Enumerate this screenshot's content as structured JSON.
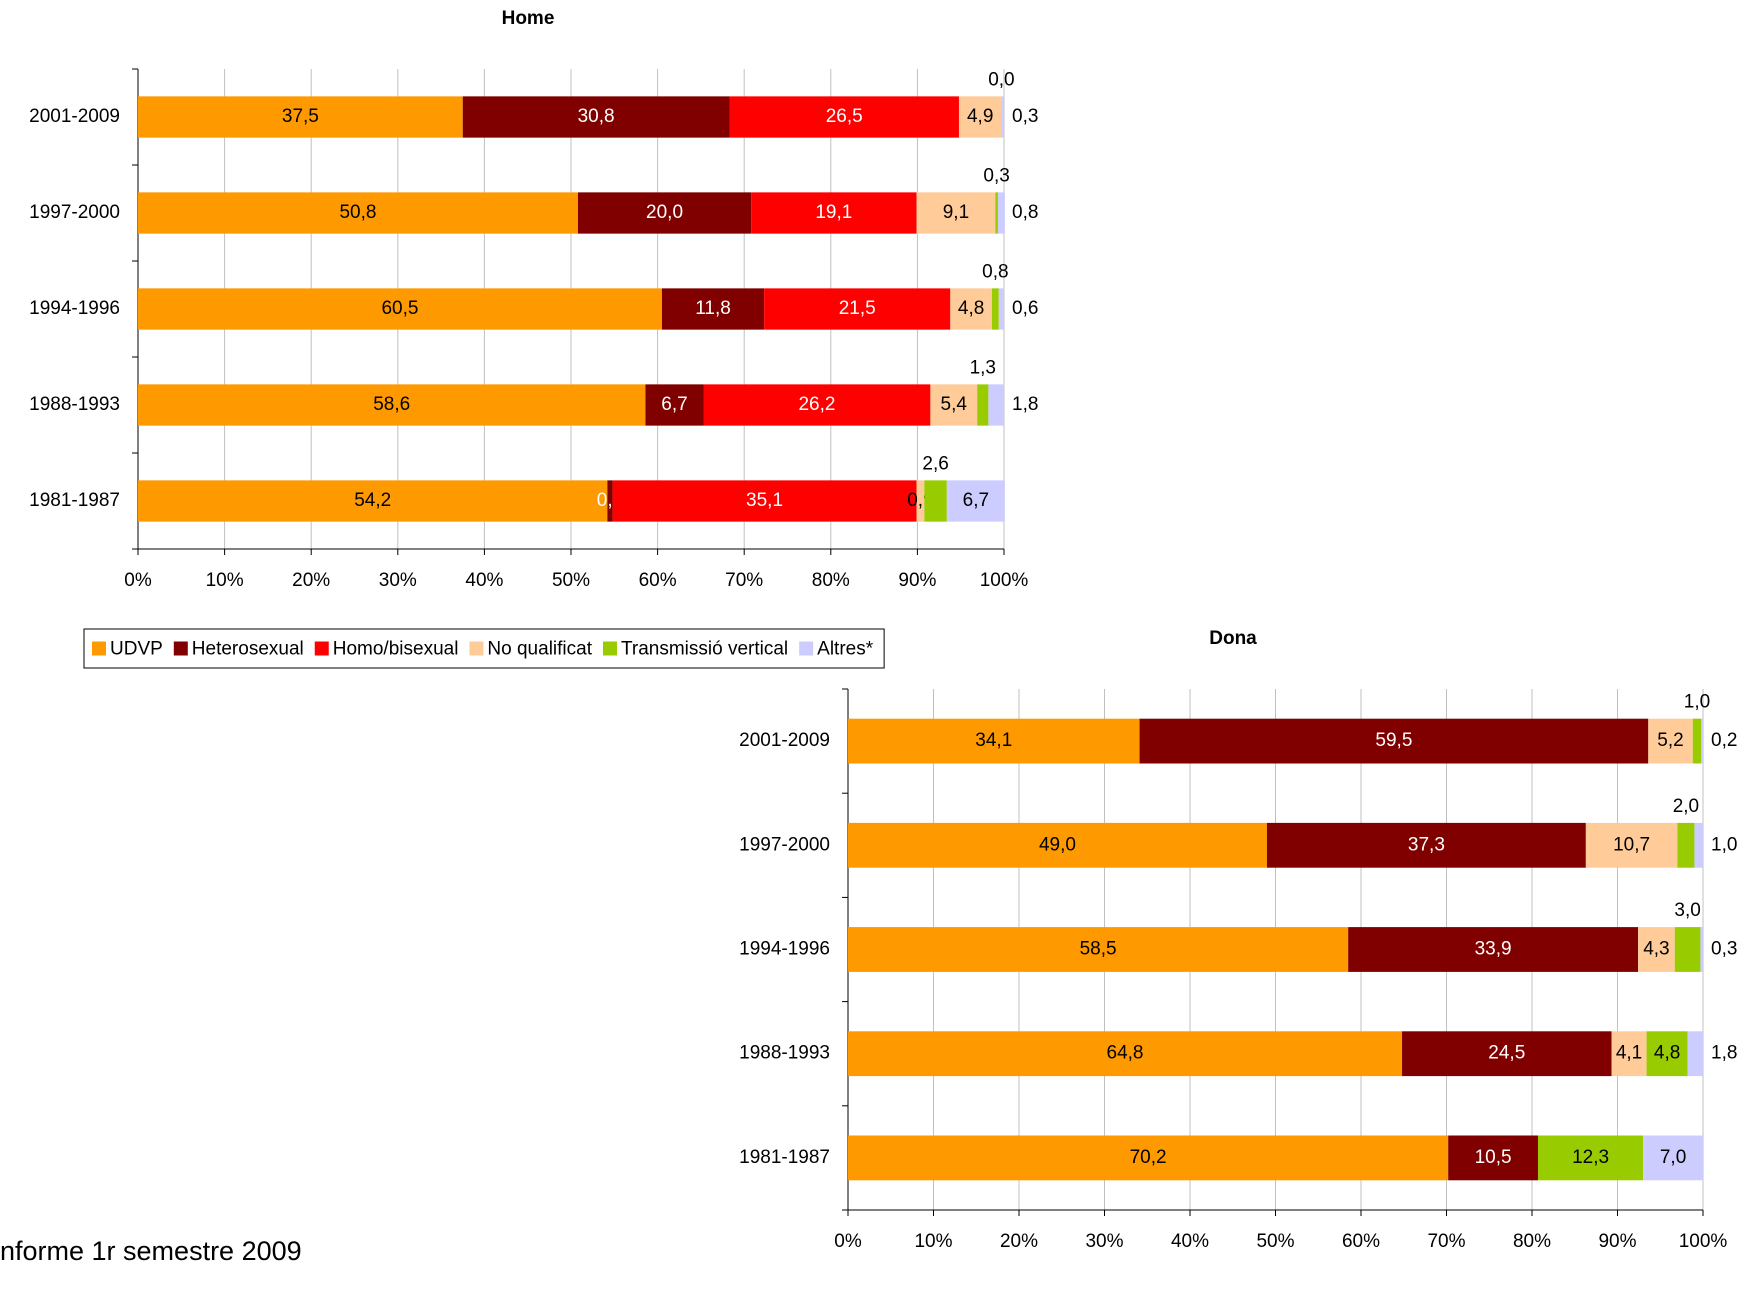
{
  "chart_data": [
    {
      "type": "bar",
      "orientation": "horizontal",
      "stacked": true,
      "title": "Home",
      "categories": [
        "2001-2009",
        "1997-2000",
        "1994-1996",
        "1988-1993",
        "1981-1987"
      ],
      "series": [
        {
          "name": "UDVP",
          "color": "#ff9900",
          "values": [
            37.5,
            50.8,
            60.5,
            58.6,
            54.2
          ],
          "value_labels": [
            "37,5",
            "50,8",
            "60,5",
            "58,6",
            "54,2"
          ]
        },
        {
          "name": "Heterosexual",
          "color": "#800000",
          "values": [
            30.8,
            20.0,
            11.8,
            6.7,
            0.6
          ],
          "value_labels": [
            "30,8",
            "20,0",
            "11,8",
            "6,7",
            "0,6"
          ]
        },
        {
          "name": "Homo/bisexual",
          "color": "#ff0000",
          "values": [
            26.5,
            19.1,
            21.5,
            26.2,
            35.1
          ],
          "value_labels": [
            "26,5",
            "19,1",
            "21,5",
            "26,2",
            "35,1"
          ]
        },
        {
          "name": "No qualificat",
          "color": "#ffcc99",
          "values": [
            4.9,
            9.1,
            4.8,
            5.4,
            0.9
          ],
          "value_labels": [
            "4,9",
            "9,1",
            "4,8",
            "5,4",
            "0,9"
          ]
        },
        {
          "name": "Transmissió vertical",
          "color": "#99cc00",
          "values": [
            0.0,
            0.3,
            0.8,
            1.3,
            2.6
          ],
          "value_labels": [
            "0,0",
            "0,3",
            "0,8",
            "1,3",
            "2,6"
          ]
        },
        {
          "name": "Altres*",
          "color": "#ccccff",
          "values": [
            0.3,
            0.8,
            0.6,
            1.8,
            6.7
          ],
          "value_labels": [
            "0,3",
            "0,8",
            "0,6",
            "1,8",
            "6,7"
          ]
        }
      ],
      "xlim": [
        0,
        100
      ],
      "xticks": [
        {
          "value": 0,
          "label": "0%"
        },
        {
          "value": 10,
          "label": "10%"
        },
        {
          "value": 20,
          "label": "20%"
        },
        {
          "value": 30,
          "label": "30%"
        },
        {
          "value": 40,
          "label": "40%"
        },
        {
          "value": 50,
          "label": "50%"
        },
        {
          "value": 60,
          "label": "60%"
        },
        {
          "value": 70,
          "label": "70%"
        },
        {
          "value": 80,
          "label": "80%"
        },
        {
          "value": 90,
          "label": "90%"
        },
        {
          "value": 100,
          "label": "100%"
        }
      ],
      "grid": true,
      "legend": "bottom"
    },
    {
      "type": "bar",
      "orientation": "horizontal",
      "stacked": true,
      "title": "Dona",
      "categories": [
        "2001-2009",
        "1997-2000",
        "1994-1996",
        "1988-1993",
        "1981-1987"
      ],
      "series": [
        {
          "color": "#ff9900",
          "values": [
            34.1,
            49.0,
            58.5,
            64.8,
            70.2
          ],
          "value_labels": [
            "34,1",
            "49,0",
            "58,5",
            "64,8",
            "70,2"
          ]
        },
        {
          "color": "#800000",
          "values": [
            59.5,
            37.3,
            33.9,
            24.5,
            10.5
          ],
          "value_labels": [
            "59,5",
            "37,3",
            "33,9",
            "24,5",
            "10,5"
          ]
        },
        {
          "color": "#ffcc99",
          "values": [
            5.2,
            10.7,
            4.3,
            4.1,
            null
          ],
          "value_labels": [
            "5,2",
            "10,7",
            "4,3",
            "4,1",
            null
          ]
        },
        {
          "color": "#99cc00",
          "values": [
            1.0,
            2.0,
            3.0,
            4.8,
            12.3
          ],
          "value_labels": [
            "1,0",
            "2,0",
            "3,0",
            "4,8",
            "12,3"
          ]
        },
        {
          "color": "#ccccff",
          "values": [
            0.2,
            1.0,
            0.3,
            1.8,
            7.0
          ],
          "value_labels": [
            "0,2",
            "1,0",
            "0,3",
            "1,8",
            "7,0"
          ]
        }
      ],
      "xlim": [
        0,
        100
      ],
      "xticks": [
        {
          "value": 0,
          "label": "0%"
        },
        {
          "value": 10,
          "label": "10%"
        },
        {
          "value": 20,
          "label": "20%"
        },
        {
          "value": 30,
          "label": "30%"
        },
        {
          "value": 40,
          "label": "40%"
        },
        {
          "value": 50,
          "label": "50%"
        },
        {
          "value": 60,
          "label": "60%"
        },
        {
          "value": 70,
          "label": "70%"
        },
        {
          "value": 80,
          "label": "80%"
        },
        {
          "value": 90,
          "label": "90%"
        },
        {
          "value": 100,
          "label": "100%"
        }
      ],
      "grid": true
    }
  ],
  "footer": "nforme 1r semestre 2009"
}
